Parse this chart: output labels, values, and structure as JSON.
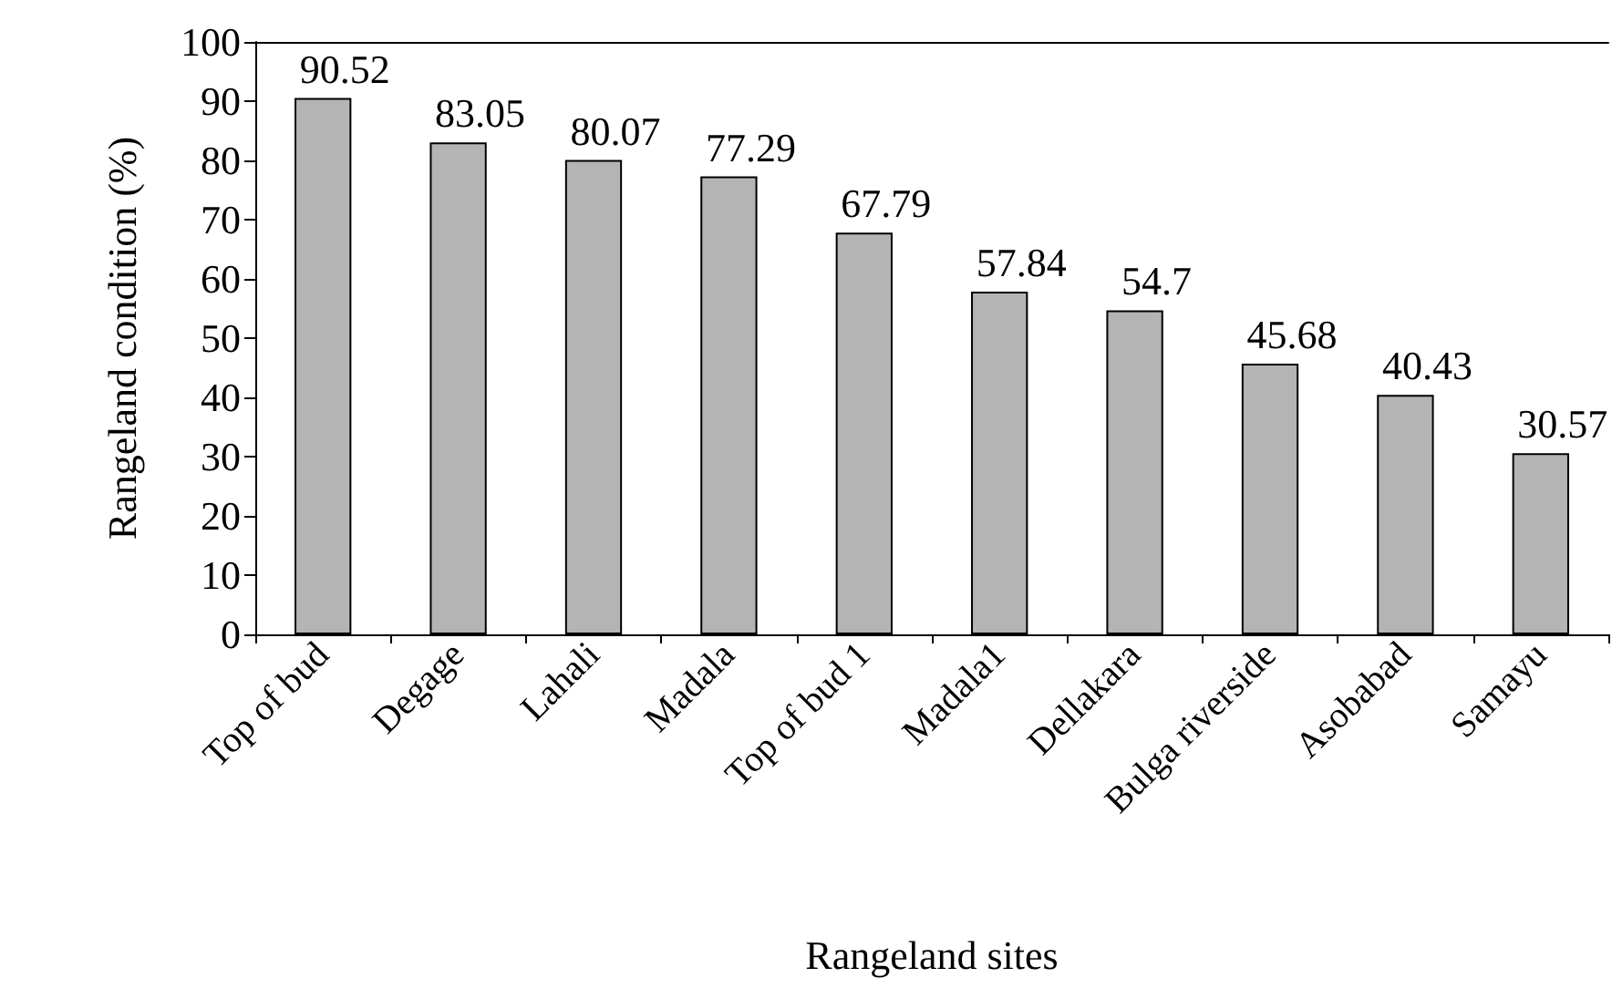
{
  "chart_data": {
    "type": "bar",
    "xlabel": "Rangeland sites",
    "ylabel": "Rangeland condition (%)",
    "categories": [
      "Top of bud",
      "Degage",
      "Lahali",
      "Madala",
      "Top of bud 1",
      "Madala1",
      "Dellakara",
      "Bulga riverside",
      "Asobabad",
      "Samayu"
    ],
    "values": [
      90.52,
      83.05,
      80.07,
      77.29,
      67.79,
      57.84,
      54.7,
      45.68,
      40.43,
      30.57
    ],
    "color": "#b4b4b4",
    "ylim": [
      0,
      100
    ],
    "yticks": [
      0,
      10,
      20,
      30,
      40,
      50,
      60,
      70,
      80,
      90,
      100
    ],
    "data_labels": true,
    "grid": false
  }
}
